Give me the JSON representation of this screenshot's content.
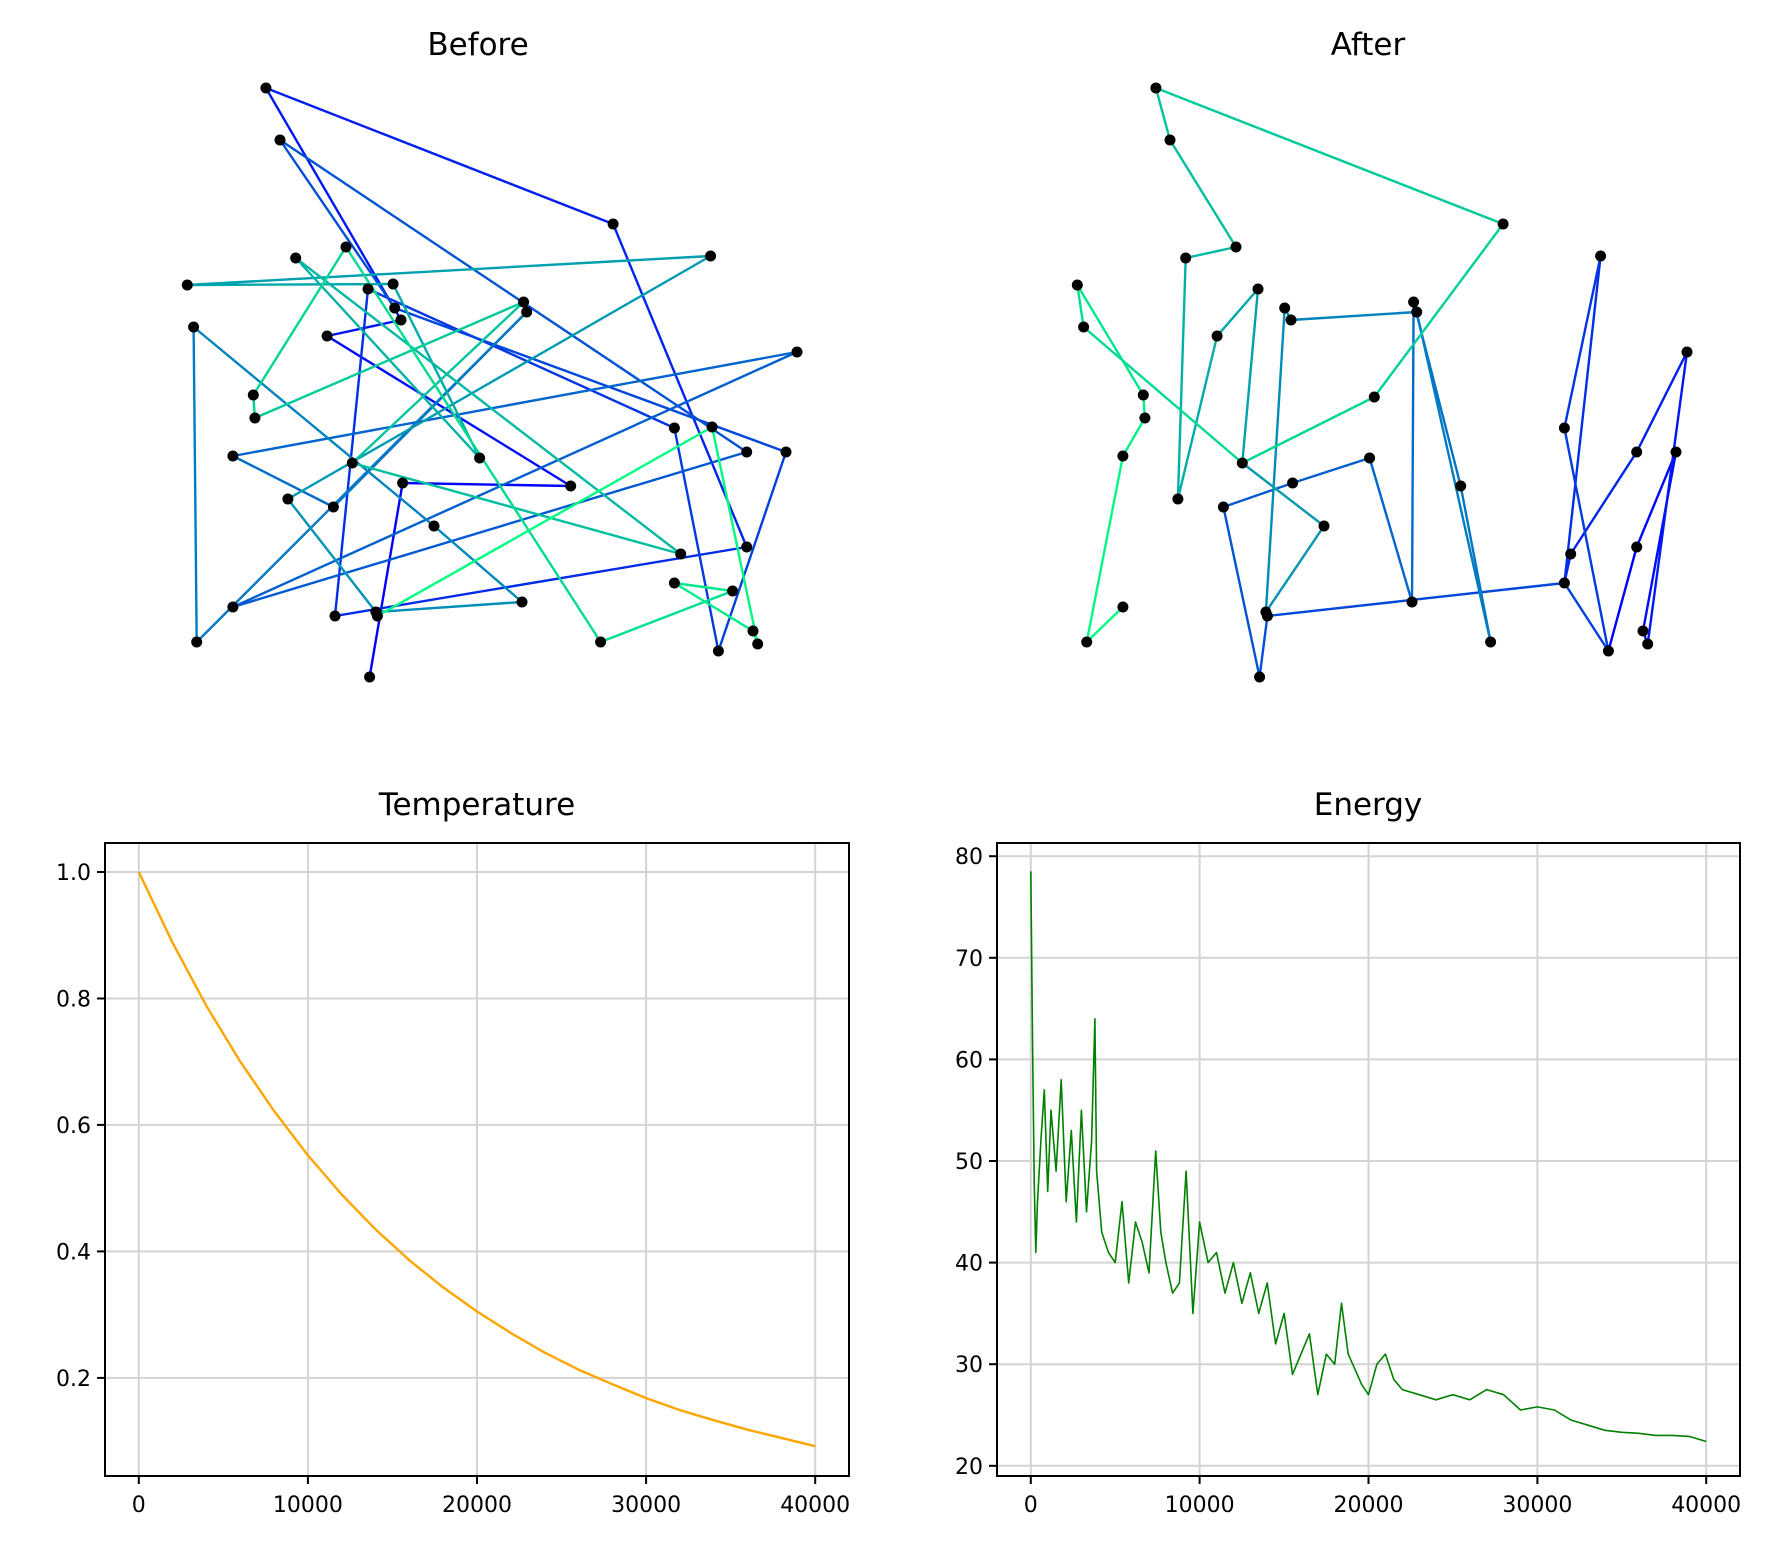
{
  "chart_data": [
    {
      "type": "line",
      "title": "Before",
      "axes_visible": false,
      "node_color": "#000000",
      "segment_colormap": "winter",
      "path": [
        [
          14.1,
          2.3
        ],
        [
          16.2,
          21.7
        ],
        [
          26.9,
          21.4
        ],
        [
          11.4,
          36.4
        ],
        [
          16.1,
          38.0
        ],
        [
          7.5,
          61.2
        ],
        [
          29.6,
          47.6
        ],
        [
          38.1,
          15.3
        ],
        [
          11.9,
          8.4
        ],
        [
          14.0,
          41.1
        ],
        [
          33.5,
          27.2
        ],
        [
          36.3,
          4.9
        ],
        [
          40.6,
          24.8
        ],
        [
          15.7,
          39.2
        ],
        [
          8.4,
          56.0
        ],
        [
          38.1,
          24.8
        ],
        [
          5.4,
          9.3
        ],
        [
          41.3,
          34.8
        ],
        [
          5.4,
          24.4
        ],
        [
          11.8,
          19.3
        ],
        [
          24.1,
          38.8
        ],
        [
          3.1,
          5.8
        ],
        [
          2.9,
          37.3
        ],
        [
          18.2,
          17.4
        ],
        [
          23.8,
          9.8
        ],
        [
          14.5,
          8.8
        ],
        [
          8.9,
          20.1
        ],
        [
          35.8,
          44.4
        ],
        [
          2.5,
          41.5
        ],
        [
          15.6,
          41.6
        ],
        [
          21.1,
          24.2
        ],
        [
          9.4,
          44.2
        ],
        [
          33.9,
          14.6
        ],
        [
          13.0,
          23.7
        ],
        [
          23.9,
          39.8
        ],
        [
          6.8,
          28.2
        ],
        [
          6.7,
          30.5
        ],
        [
          12.6,
          45.3
        ],
        [
          28.8,
          5.8
        ],
        [
          37.2,
          10.9
        ],
        [
          33.5,
          11.7
        ],
        [
          38.5,
          6.9
        ],
        [
          38.8,
          5.6
        ],
        [
          35.9,
          27.3
        ],
        [
          14.6,
          8.4
        ]
      ]
    },
    {
      "type": "line",
      "title": "After",
      "axes_visible": false,
      "node_color": "#000000",
      "segment_colormap": "winter",
      "path": [
        [
          36.3,
          4.9
        ],
        [
          38.1,
          15.3
        ],
        [
          40.6,
          24.8
        ],
        [
          38.5,
          6.9
        ],
        [
          38.8,
          5.6
        ],
        [
          41.3,
          34.8
        ],
        [
          38.1,
          24.8
        ],
        [
          33.9,
          14.6
        ],
        [
          33.5,
          11.7
        ],
        [
          35.8,
          44.4
        ],
        [
          33.5,
          27.2
        ],
        [
          36.3,
          4.9
        ],
        [
          33.5,
          11.7
        ],
        [
          14.6,
          8.4
        ],
        [
          14.1,
          2.3
        ],
        [
          11.8,
          19.3
        ],
        [
          16.2,
          21.7
        ],
        [
          21.1,
          24.2
        ],
        [
          23.8,
          9.8
        ],
        [
          23.9,
          39.8
        ],
        [
          26.9,
          21.4
        ],
        [
          28.8,
          5.8
        ],
        [
          24.1,
          38.8
        ],
        [
          16.1,
          38.0
        ],
        [
          15.7,
          39.2
        ],
        [
          14.5,
          8.8
        ],
        [
          18.2,
          17.4
        ],
        [
          13.0,
          23.7
        ],
        [
          14.0,
          41.1
        ],
        [
          11.4,
          36.4
        ],
        [
          8.9,
          20.1
        ],
        [
          9.4,
          44.2
        ],
        [
          12.6,
          45.3
        ],
        [
          8.4,
          56.0
        ],
        [
          7.5,
          61.2
        ],
        [
          29.6,
          47.6
        ],
        [
          21.4,
          30.3
        ],
        [
          13.0,
          23.7
        ],
        [
          2.9,
          37.3
        ],
        [
          2.5,
          41.5
        ],
        [
          6.7,
          30.5
        ],
        [
          6.8,
          28.2
        ],
        [
          5.4,
          24.4
        ],
        [
          3.1,
          5.8
        ],
        [
          5.4,
          9.3
        ]
      ]
    },
    {
      "type": "line",
      "title": "Temperature",
      "color": "#ffa500",
      "grid": true,
      "xlim": [
        -2000,
        42000
      ],
      "ylim": [
        0.0448,
        1.0459
      ],
      "xticks": [
        0,
        10000,
        20000,
        30000,
        40000
      ],
      "yticks": [
        0.2,
        0.4,
        0.6,
        0.8,
        1.0
      ],
      "xtick_labels": [
        "0",
        "10000",
        "20000",
        "30000",
        "40000"
      ],
      "ytick_labels": [
        "0.2",
        "0.4",
        "0.6",
        "0.8",
        "1.0"
      ],
      "x": [
        0,
        2000,
        4000,
        6000,
        8000,
        10000,
        12000,
        14000,
        16000,
        18000,
        20000,
        22000,
        24000,
        26000,
        28000,
        30000,
        32000,
        34000,
        36000,
        38000,
        40000
      ],
      "y": [
        1.0,
        0.888,
        0.788,
        0.7,
        0.622,
        0.552,
        0.49,
        0.435,
        0.386,
        0.343,
        0.305,
        0.271,
        0.24,
        0.213,
        0.19,
        0.168,
        0.149,
        0.133,
        0.118,
        0.105,
        0.092
      ]
    },
    {
      "type": "line",
      "title": "Energy",
      "color": "#008000",
      "grid": true,
      "xlim": [
        -2000,
        42000
      ],
      "ylim": [
        19.0,
        81.3
      ],
      "xticks": [
        0,
        10000,
        20000,
        30000,
        40000
      ],
      "yticks": [
        20,
        30,
        40,
        50,
        60,
        70,
        80
      ],
      "xtick_labels": [
        "0",
        "10000",
        "20000",
        "30000",
        "40000"
      ],
      "ytick_labels": [
        "20",
        "30",
        "40",
        "50",
        "60",
        "70",
        "80"
      ],
      "x": [
        0,
        100,
        200,
        300,
        400,
        600,
        800,
        1000,
        1200,
        1500,
        1800,
        2100,
        2400,
        2700,
        3000,
        3300,
        3600,
        3800,
        3900,
        4200,
        4600,
        5000,
        5400,
        5800,
        6200,
        6600,
        7000,
        7400,
        7700,
        8000,
        8400,
        8800,
        9200,
        9400,
        9600,
        10000,
        10500,
        11000,
        11500,
        12000,
        12500,
        13000,
        13500,
        14000,
        14500,
        15000,
        15500,
        16000,
        16500,
        17000,
        17500,
        18000,
        18400,
        18800,
        19200,
        19600,
        20000,
        20500,
        21000,
        21500,
        22000,
        23000,
        24000,
        25000,
        26000,
        27000,
        28000,
        29000,
        30000,
        31000,
        32000,
        33000,
        34000,
        35000,
        36000,
        37000,
        38000,
        39000,
        40000
      ],
      "y": [
        78.5,
        62.0,
        48.0,
        41.0,
        46.0,
        52.0,
        57.0,
        47.0,
        55.0,
        49.0,
        58.0,
        46.0,
        53.0,
        44.0,
        55.0,
        45.0,
        52.0,
        64.0,
        49.0,
        43.0,
        41.0,
        40.0,
        46.0,
        38.0,
        44.0,
        42.0,
        39.0,
        51.0,
        43.0,
        40.0,
        37.0,
        38.0,
        49.0,
        42.0,
        35.0,
        44.0,
        40.0,
        41.0,
        37.0,
        40.0,
        36.0,
        39.0,
        35.0,
        38.0,
        32.0,
        35.0,
        29.0,
        31.0,
        33.0,
        27.0,
        31.0,
        30.0,
        36.0,
        31.0,
        29.5,
        28.0,
        27.0,
        30.0,
        31.0,
        28.5,
        27.5,
        27.0,
        26.5,
        27.0,
        26.5,
        27.5,
        27.0,
        25.5,
        25.8,
        25.5,
        24.5,
        24.0,
        23.5,
        23.3,
        23.2,
        23.0,
        23.0,
        22.9,
        22.4
      ]
    }
  ]
}
